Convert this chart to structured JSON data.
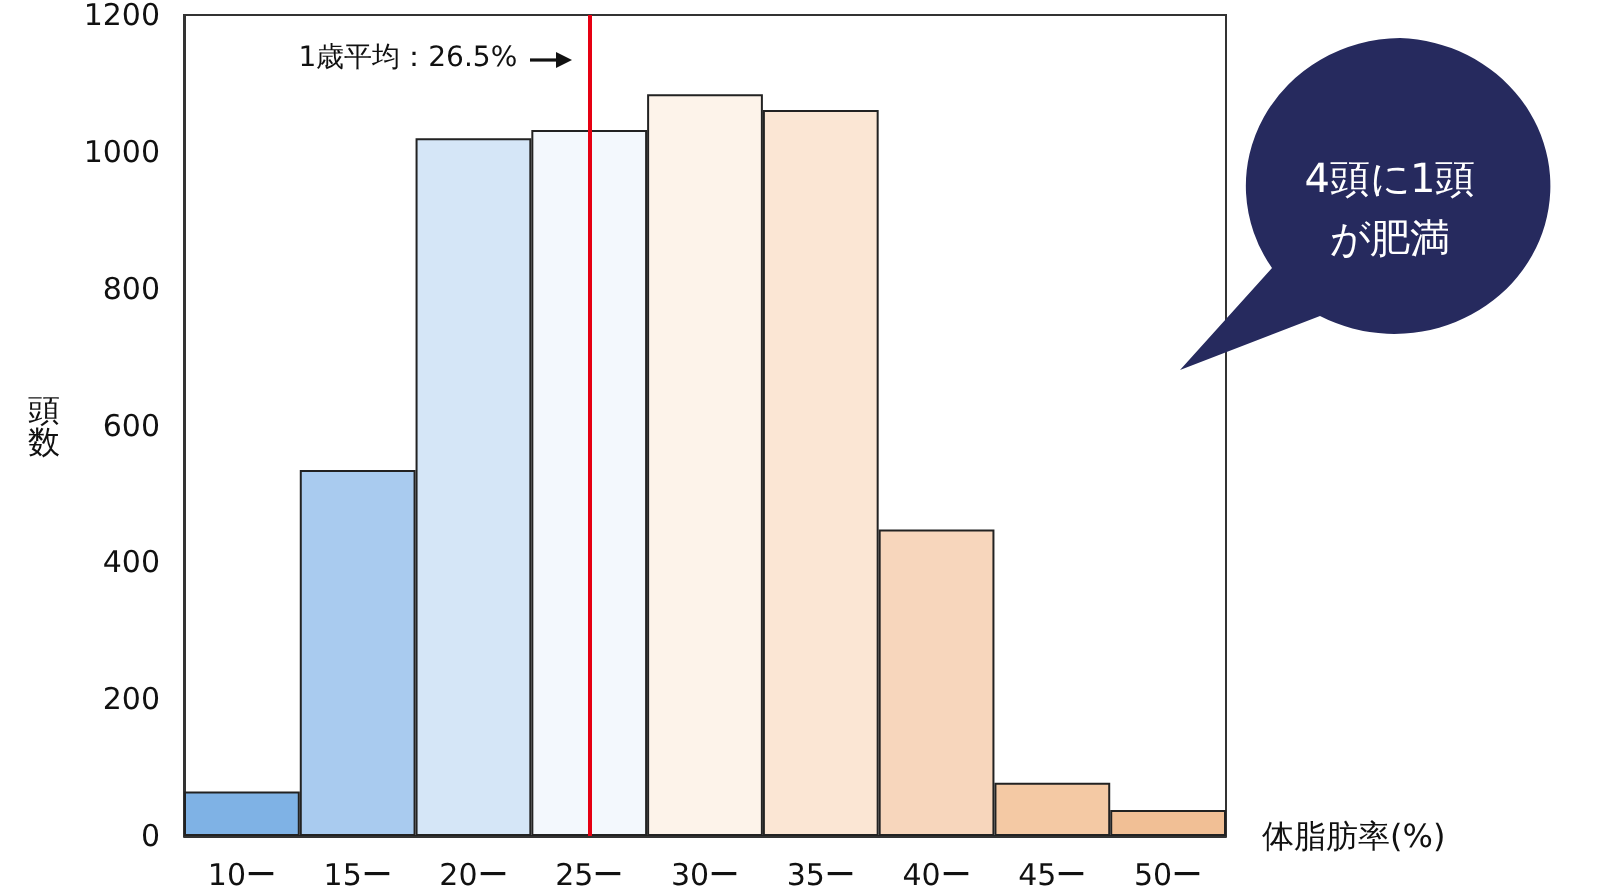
{
  "chart_data": {
    "type": "bar",
    "xlabel": "体脂肪率(%)",
    "ylabel": "頭数",
    "categories": [
      "10ー",
      "15ー",
      "20ー",
      "25ー",
      "30ー",
      "35ー",
      "40ー",
      "45ー",
      "50ー"
    ],
    "values": [
      65,
      535,
      1020,
      1032,
      1084,
      1061,
      448,
      78,
      38
    ],
    "colors": [
      "#7fb2e5",
      "#a9cbef",
      "#d5e6f7",
      "#f3f8fd",
      "#fdf3ea",
      "#fbe6d4",
      "#f7d6bc",
      "#f4c9a4",
      "#f1bf95"
    ],
    "ylim": [
      0,
      1200
    ],
    "yticks": [
      0,
      200,
      400,
      600,
      800,
      1000,
      1200
    ],
    "grid": false,
    "ref_lines": [
      {
        "axis": "x",
        "value": "25ー",
        "label": "1歳平均：26.5%",
        "color": "#e60012"
      }
    ],
    "annotations": [
      "4頭に1頭が肥満"
    ]
  }
}
